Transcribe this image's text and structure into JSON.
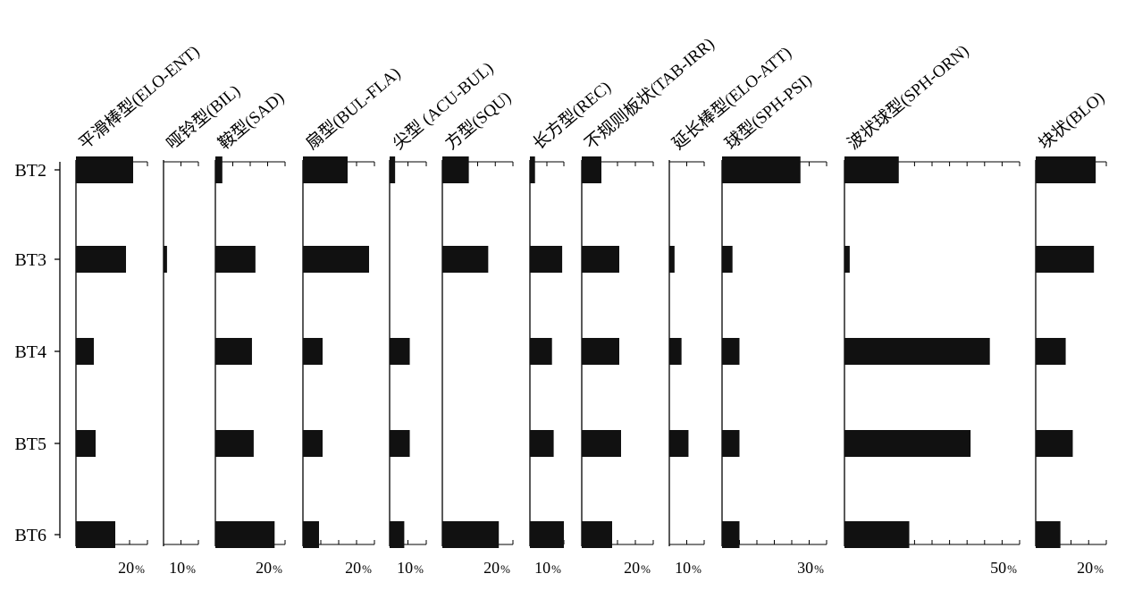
{
  "chart_data": {
    "type": "bar",
    "orientation": "horizontal",
    "categories": [
      "BT2",
      "BT3",
      "BT4",
      "BT5",
      "BT6"
    ],
    "percent_sign": "%",
    "panels": [
      {
        "name": "平滑棒型(ELO-ENT)",
        "max": 20,
        "max_label": "20",
        "values": [
          16,
          14,
          5,
          5.5,
          11
        ]
      },
      {
        "name": "哑铃型(BIL)",
        "max": 10,
        "max_label": "10",
        "values": [
          0,
          1,
          0,
          0,
          0
        ]
      },
      {
        "name": "鞍型(SAD)",
        "max": 20,
        "max_label": "20",
        "values": [
          2,
          11.5,
          10.5,
          11,
          17
        ]
      },
      {
        "name": "扇型(BUL-FLA)",
        "max": 20,
        "max_label": "20",
        "values": [
          12.5,
          18.5,
          5.5,
          5.5,
          4.5
        ]
      },
      {
        "name": "尖型 (ACU-BUL)",
        "max": 10,
        "max_label": "10",
        "values": [
          1.5,
          0,
          5.5,
          5.5,
          4
        ]
      },
      {
        "name": "方型(SQU)",
        "max": 20,
        "max_label": "20",
        "values": [
          7.5,
          13,
          0,
          0,
          16
        ]
      },
      {
        "name": "长方型(REC)",
        "max": 10,
        "max_label": "10",
        "values": [
          1.5,
          9.5,
          6.5,
          7,
          10
        ]
      },
      {
        "name": "不规则板状(TAB-IRR)",
        "max": 20,
        "max_label": "20",
        "values": [
          5.5,
          10.5,
          10.5,
          11,
          8.5
        ]
      },
      {
        "name": "延长棒型(ELO-ATT)",
        "max": 10,
        "max_label": "10",
        "values": [
          0,
          1.5,
          3.5,
          5.5,
          0
        ]
      },
      {
        "name": "球型(SPH-PSI)",
        "max": 30,
        "max_label": "30",
        "values": [
          22.5,
          3,
          5,
          5,
          5
        ]
      },
      {
        "name": "波状球型(SPH-ORN)",
        "max": 50,
        "max_label": "50",
        "values": [
          15.5,
          1.5,
          41.5,
          36,
          18.5
        ]
      },
      {
        "name": "块状(BLO)",
        "max": 20,
        "max_label": "20",
        "values": [
          17,
          16.5,
          8.5,
          10.5,
          7
        ]
      }
    ]
  }
}
